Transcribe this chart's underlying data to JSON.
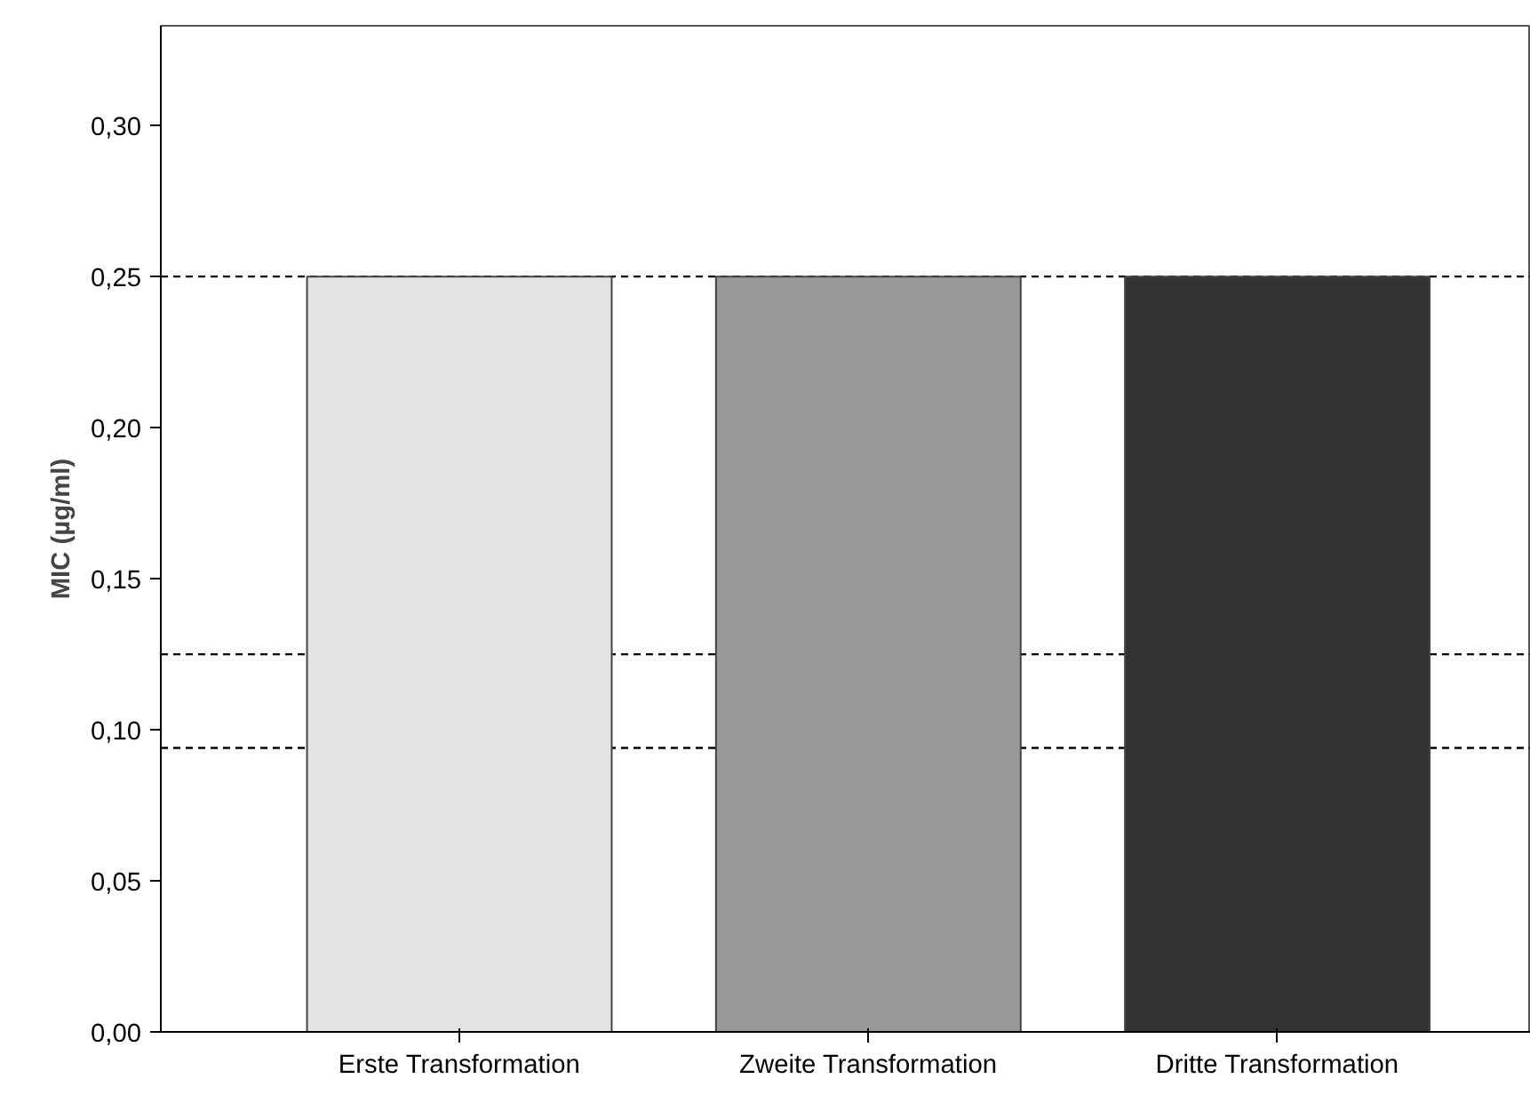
{
  "chart_data": {
    "type": "bar",
    "ylabel": "MIC (µg/ml)",
    "categories": [
      "Erste Transformation",
      "Zweite Transformation",
      "Dritte Transformation"
    ],
    "values": [
      0.25,
      0.25,
      0.25
    ],
    "colors": [
      "#e3e3e3",
      "#999999",
      "#333333"
    ],
    "ylim": [
      0,
      0.333
    ],
    "yticks": [
      {
        "value": 0,
        "label": "0,00"
      },
      {
        "value": 0.05,
        "label": "0,05"
      },
      {
        "value": 0.1,
        "label": "0,10"
      },
      {
        "value": 0.15,
        "label": "0,15"
      },
      {
        "value": 0.2,
        "label": "0,20"
      },
      {
        "value": 0.25,
        "label": "0,25"
      },
      {
        "value": 0.3,
        "label": "0,30"
      }
    ],
    "ref_lines": [
      {
        "axis": "y",
        "value": 0.25,
        "line_style": "dashed",
        "color": "#000000"
      },
      {
        "axis": "y",
        "value": 0.125,
        "line_style": "dashed",
        "color": "#000000"
      },
      {
        "axis": "y",
        "value": 0.094,
        "line_style": "dashed",
        "color": "#000000"
      }
    ],
    "grid": false
  }
}
